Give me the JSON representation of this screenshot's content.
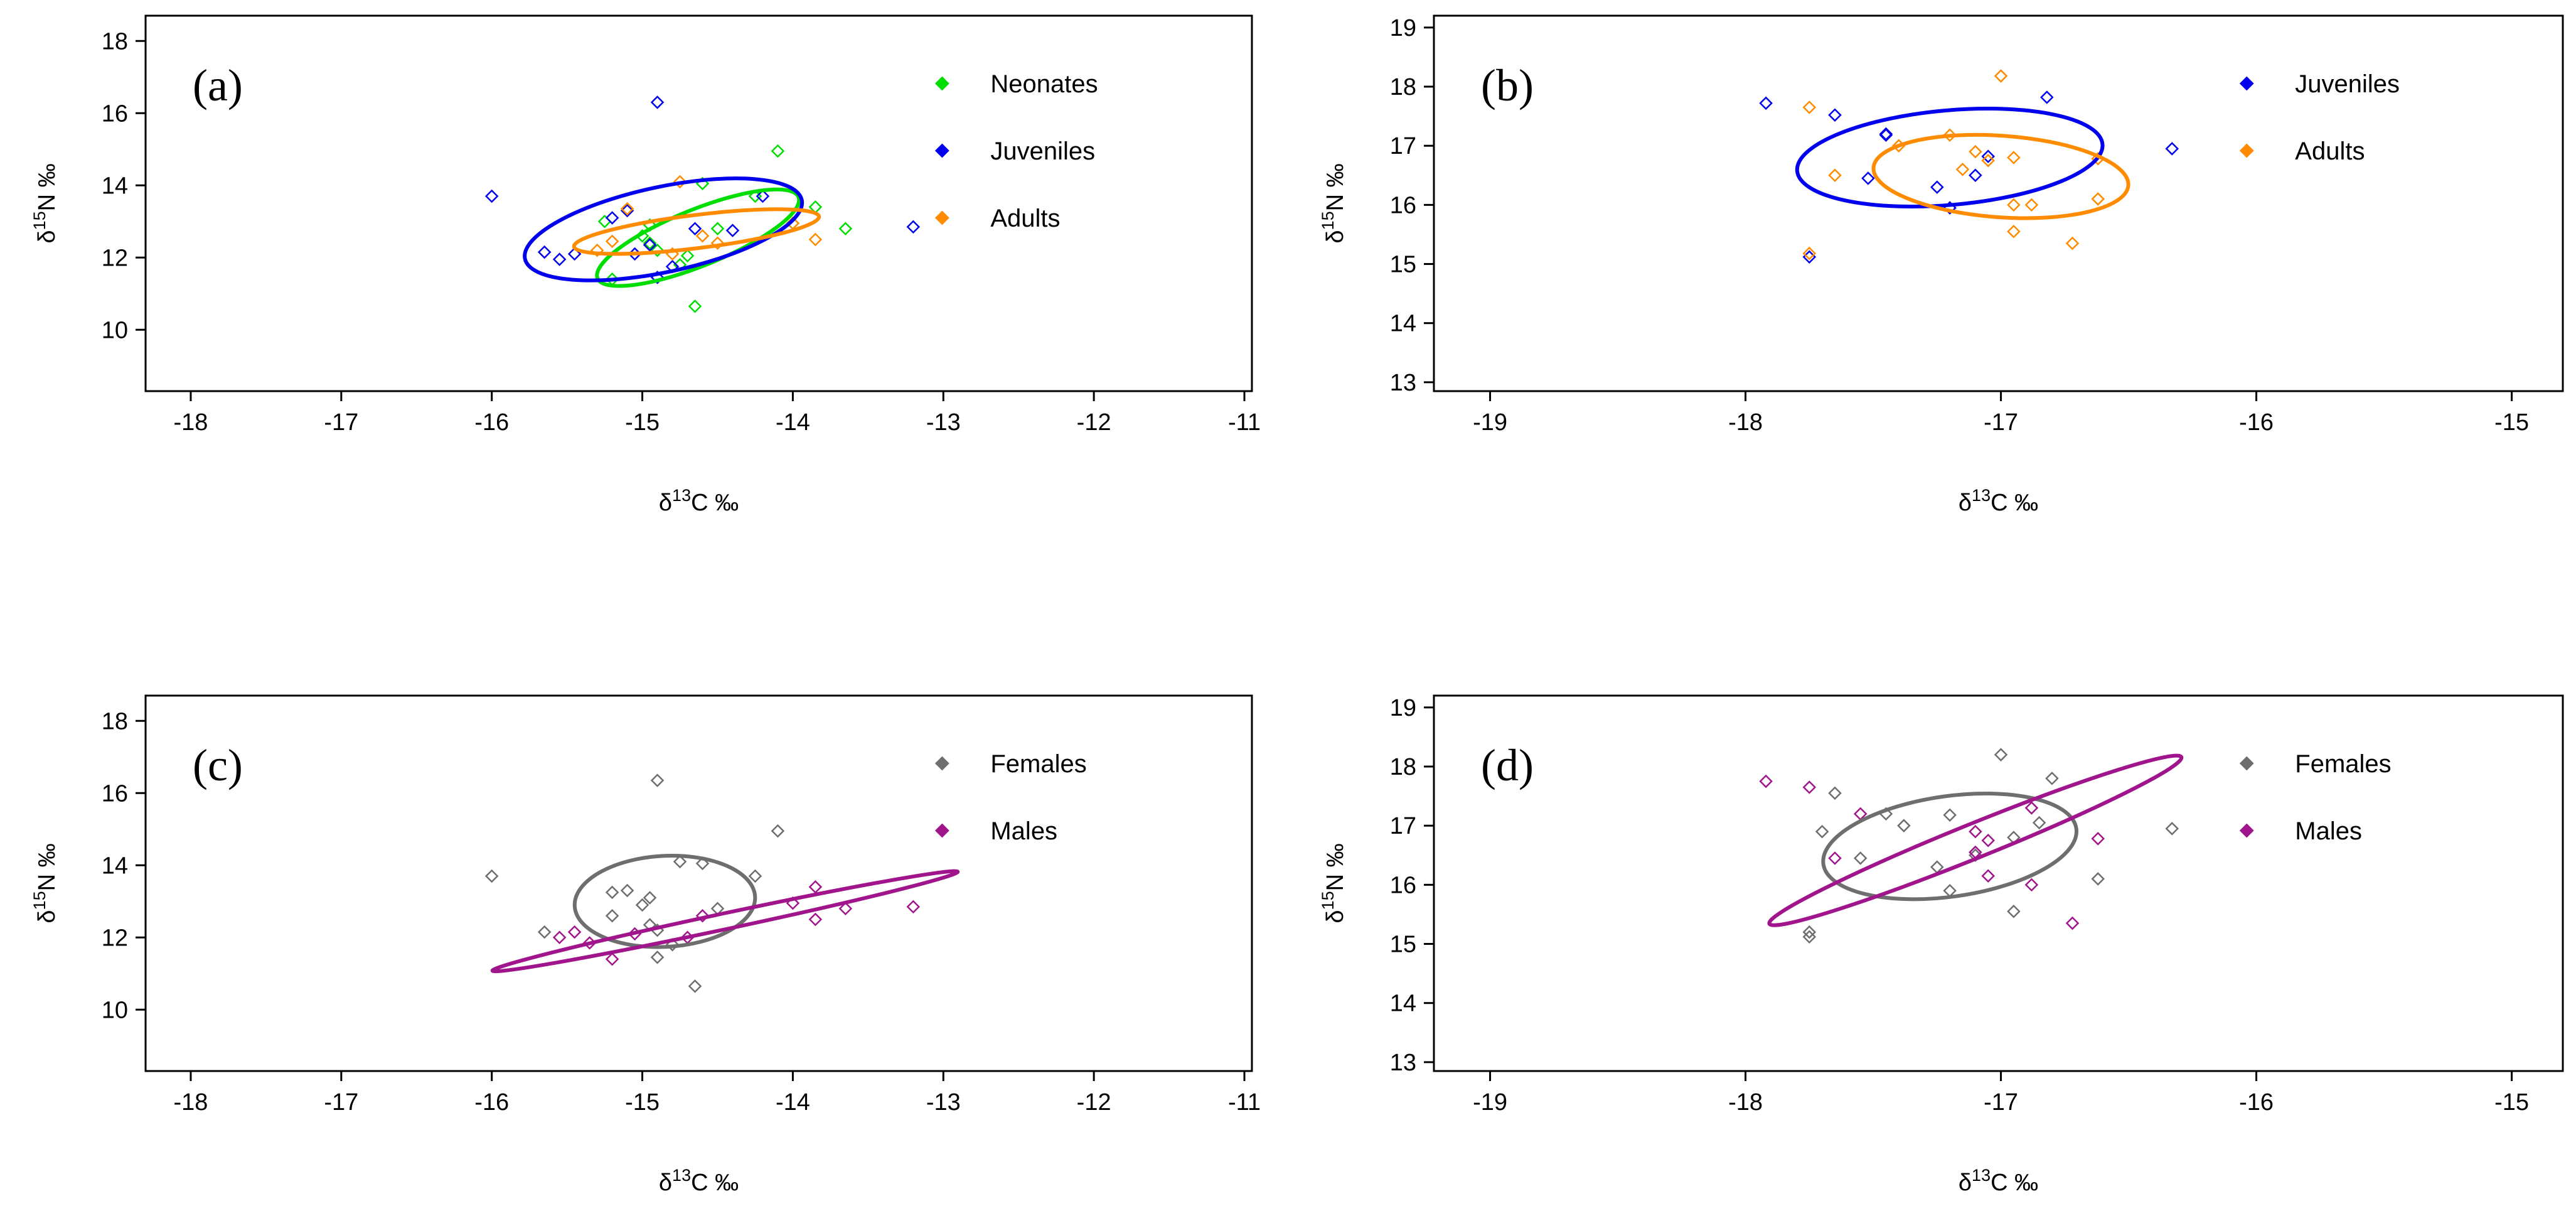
{
  "chart_data": [
    {
      "type": "scatter",
      "panel_label": "(a)",
      "xlabel": {
        "pre": "δ",
        "sup": "13",
        "post": "C ‰"
      },
      "ylabel": {
        "pre": "δ",
        "sup": "15",
        "post": "N ‰"
      },
      "xlim": [
        -18.3,
        -10.95
      ],
      "ylim": [
        8.3,
        18.7
      ],
      "xticks": [
        -18,
        -17,
        -16,
        -15,
        -14,
        -13,
        -12,
        -11
      ],
      "yticks": [
        10,
        12,
        14,
        16,
        18
      ],
      "legend_position": "top-right",
      "series": [
        {
          "name": "Neonates",
          "color": "#00dd00",
          "points": [
            [
              -14.1,
              14.95
            ],
            [
              -14.6,
              14.05
            ],
            [
              -14.25,
              13.7
            ],
            [
              -13.85,
              13.4
            ],
            [
              -13.65,
              12.8
            ],
            [
              -14.0,
              12.95
            ],
            [
              -14.95,
              12.9
            ],
            [
              -14.95,
              12.4
            ],
            [
              -14.9,
              12.2
            ],
            [
              -14.7,
              12.05
            ],
            [
              -14.75,
              11.8
            ],
            [
              -15.2,
              11.4
            ],
            [
              -14.65,
              10.65
            ],
            [
              -15.0,
              12.6
            ],
            [
              -15.25,
              13.0
            ],
            [
              -14.5,
              12.8
            ]
          ],
          "ellipse": {
            "cx": -14.63,
            "cy": 12.55,
            "rx": 0.72,
            "ry": 0.78,
            "angle": 22
          }
        },
        {
          "name": "Juveniles",
          "color": "#0000ee",
          "points": [
            [
              -16.0,
              13.7
            ],
            [
              -14.9,
              16.3
            ],
            [
              -15.65,
              12.15
            ],
            [
              -15.55,
              11.95
            ],
            [
              -15.45,
              12.1
            ],
            [
              -15.05,
              12.1
            ],
            [
              -14.9,
              11.45
            ],
            [
              -14.8,
              11.75
            ],
            [
              -14.65,
              12.8
            ],
            [
              -14.4,
              12.75
            ],
            [
              -14.2,
              13.7
            ],
            [
              -13.2,
              12.85
            ],
            [
              -15.2,
              13.1
            ],
            [
              -15.1,
              13.3
            ],
            [
              -14.95,
              12.35
            ]
          ],
          "ellipse": {
            "cx": -14.86,
            "cy": 12.78,
            "rx": 0.94,
            "ry": 1.18,
            "angle": 12
          }
        },
        {
          "name": "Adults",
          "color": "#ff8c00",
          "points": [
            [
              -14.75,
              14.1
            ],
            [
              -15.2,
              12.45
            ],
            [
              -14.5,
              12.4
            ],
            [
              -14.0,
              12.95
            ],
            [
              -13.85,
              12.5
            ],
            [
              -15.1,
              13.35
            ],
            [
              -14.8,
              12.1
            ],
            [
              -14.6,
              12.6
            ],
            [
              -15.3,
              12.2
            ]
          ],
          "ellipse": {
            "cx": -14.64,
            "cy": 12.72,
            "rx": 0.82,
            "ry": 0.46,
            "angle": 7
          }
        }
      ]
    },
    {
      "type": "scatter",
      "panel_label": "(b)",
      "xlabel": {
        "pre": "δ",
        "sup": "13",
        "post": "C ‰"
      },
      "ylabel": {
        "pre": "δ",
        "sup": "15",
        "post": "N ‰"
      },
      "xlim": [
        -19.22,
        -14.8
      ],
      "ylim": [
        12.85,
        19.2
      ],
      "xticks": [
        -19,
        -18,
        -17,
        -16,
        -15
      ],
      "yticks": [
        13,
        14,
        15,
        16,
        17,
        18,
        19
      ],
      "legend_position": "top-right",
      "series": [
        {
          "name": "Juveniles",
          "color": "#0000ee",
          "points": [
            [
              -17.92,
              17.72
            ],
            [
              -17.65,
              17.52
            ],
            [
              -17.45,
              17.2
            ],
            [
              -17.45,
              17.18
            ],
            [
              -17.52,
              16.45
            ],
            [
              -17.25,
              16.3
            ],
            [
              -17.05,
              16.82
            ],
            [
              -17.2,
              15.95
            ],
            [
              -16.82,
              17.82
            ],
            [
              -16.33,
              16.95
            ],
            [
              -17.75,
              15.12
            ],
            [
              -17.1,
              16.5
            ]
          ],
          "ellipse": {
            "cx": -17.2,
            "cy": 16.8,
            "rx": 0.6,
            "ry": 0.8,
            "angle": 5
          }
        },
        {
          "name": "Adults",
          "color": "#ff8c00",
          "points": [
            [
              -17.0,
              18.18
            ],
            [
              -17.75,
              17.65
            ],
            [
              -17.65,
              16.5
            ],
            [
              -17.4,
              17.0
            ],
            [
              -17.2,
              17.18
            ],
            [
              -17.15,
              16.6
            ],
            [
              -17.05,
              16.75
            ],
            [
              -16.95,
              16.8
            ],
            [
              -16.95,
              16.0
            ],
            [
              -16.88,
              16.0
            ],
            [
              -16.95,
              15.55
            ],
            [
              -16.72,
              15.35
            ],
            [
              -16.62,
              16.78
            ],
            [
              -16.62,
              16.1
            ],
            [
              -17.75,
              15.18
            ],
            [
              -17.1,
              16.9
            ]
          ],
          "ellipse": {
            "cx": -17.0,
            "cy": 16.48,
            "rx": 0.5,
            "ry": 0.69,
            "angle": -4
          }
        }
      ]
    },
    {
      "type": "scatter",
      "panel_label": "(c)",
      "xlabel": {
        "pre": "δ",
        "sup": "13",
        "post": "C ‰"
      },
      "ylabel": {
        "pre": "δ",
        "sup": "15",
        "post": "N ‰"
      },
      "xlim": [
        -18.3,
        -10.95
      ],
      "ylim": [
        8.3,
        18.7
      ],
      "xticks": [
        -18,
        -17,
        -16,
        -15,
        -14,
        -13,
        -12,
        -11
      ],
      "yticks": [
        10,
        12,
        14,
        16,
        18
      ],
      "legend_position": "top-right",
      "series": [
        {
          "name": "Females",
          "color": "#6e6e6e",
          "points": [
            [
              -16.0,
              13.7
            ],
            [
              -14.9,
              16.35
            ],
            [
              -14.1,
              14.95
            ],
            [
              -14.6,
              14.05
            ],
            [
              -14.75,
              14.1
            ],
            [
              -14.25,
              13.7
            ],
            [
              -15.2,
              13.25
            ],
            [
              -15.1,
              13.3
            ],
            [
              -15.0,
              12.9
            ],
            [
              -14.95,
              12.35
            ],
            [
              -14.9,
              12.2
            ],
            [
              -14.8,
              11.8
            ],
            [
              -14.9,
              11.45
            ],
            [
              -14.65,
              10.65
            ],
            [
              -15.2,
              12.6
            ],
            [
              -15.65,
              12.15
            ],
            [
              -14.5,
              12.8
            ],
            [
              -14.95,
              13.1
            ]
          ],
          "ellipse": {
            "cx": -14.85,
            "cy": 13.0,
            "rx": 0.6,
            "ry": 1.26,
            "angle": 3
          }
        },
        {
          "name": "Males",
          "color": "#a0148c",
          "points": [
            [
              -15.55,
              12.0
            ],
            [
              -15.45,
              12.15
            ],
            [
              -15.2,
              11.4
            ],
            [
              -15.35,
              11.85
            ],
            [
              -15.05,
              12.1
            ],
            [
              -14.6,
              12.6
            ],
            [
              -14.0,
              12.95
            ],
            [
              -13.85,
              12.5
            ],
            [
              -13.85,
              13.4
            ],
            [
              -13.65,
              12.8
            ],
            [
              -13.2,
              12.85
            ],
            [
              -14.7,
              12.0
            ]
          ],
          "ellipse": {
            "cx": -14.45,
            "cy": 12.45,
            "rx": 1.58,
            "ry": 0.22,
            "angle": 12
          }
        }
      ]
    },
    {
      "type": "scatter",
      "panel_label": "(d)",
      "xlabel": {
        "pre": "δ",
        "sup": "13",
        "post": "C ‰"
      },
      "ylabel": {
        "pre": "δ",
        "sup": "15",
        "post": "N ‰"
      },
      "xlim": [
        -19.22,
        -14.8
      ],
      "ylim": [
        12.85,
        19.2
      ],
      "xticks": [
        -19,
        -18,
        -17,
        -16,
        -15
      ],
      "yticks": [
        13,
        14,
        15,
        16,
        17,
        18,
        19
      ],
      "legend_position": "top-right",
      "series": [
        {
          "name": "Females",
          "color": "#6e6e6e",
          "points": [
            [
              -17.0,
              18.2
            ],
            [
              -16.8,
              17.8
            ],
            [
              -17.65,
              17.55
            ],
            [
              -17.7,
              16.9
            ],
            [
              -17.45,
              17.2
            ],
            [
              -17.38,
              17.0
            ],
            [
              -17.2,
              17.18
            ],
            [
              -17.55,
              16.45
            ],
            [
              -17.25,
              16.3
            ],
            [
              -17.2,
              15.9
            ],
            [
              -16.95,
              16.8
            ],
            [
              -17.1,
              16.5
            ],
            [
              -16.95,
              15.55
            ],
            [
              -16.85,
              17.05
            ],
            [
              -16.62,
              16.1
            ],
            [
              -16.33,
              16.95
            ],
            [
              -17.75,
              15.2
            ],
            [
              -17.75,
              15.12
            ]
          ],
          "ellipse": {
            "cx": -17.2,
            "cy": 16.65,
            "rx": 0.5,
            "ry": 0.85,
            "angle": 8
          }
        },
        {
          "name": "Males",
          "color": "#a0148c",
          "points": [
            [
              -17.92,
              17.75
            ],
            [
              -17.75,
              17.65
            ],
            [
              -17.65,
              16.45
            ],
            [
              -17.55,
              17.2
            ],
            [
              -17.1,
              16.9
            ],
            [
              -17.05,
              16.75
            ],
            [
              -17.1,
              16.55
            ],
            [
              -17.05,
              16.15
            ],
            [
              -16.88,
              16.0
            ],
            [
              -16.88,
              17.3
            ],
            [
              -16.72,
              15.35
            ],
            [
              -16.62,
              16.78
            ]
          ],
          "ellipse": {
            "cx": -17.1,
            "cy": 16.75,
            "rx": 0.87,
            "ry": 0.29,
            "angle": 22
          }
        }
      ]
    }
  ]
}
